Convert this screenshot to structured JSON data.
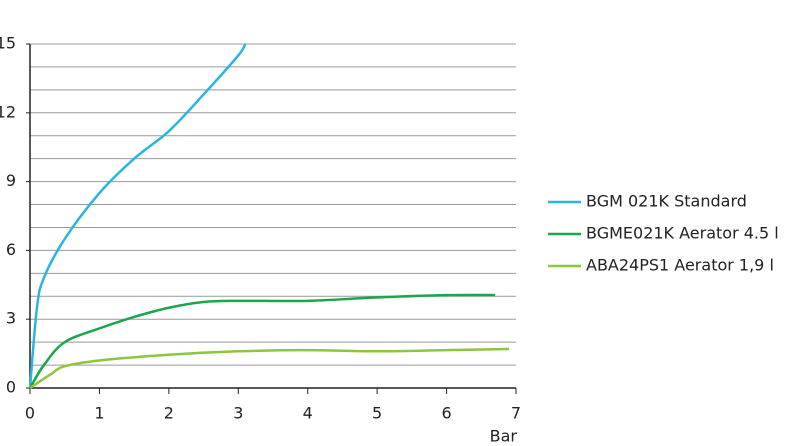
{
  "chart_data": {
    "type": "line",
    "xlabel": "Bar",
    "xlim": [
      0,
      7
    ],
    "xticks": [
      0,
      1,
      2,
      3,
      4,
      5,
      6,
      7
    ],
    "ylim": [
      0,
      15
    ],
    "yticks": [
      0,
      3,
      6,
      9,
      12,
      15
    ],
    "ygrid": [
      1,
      2,
      3,
      4,
      5,
      6,
      7,
      8,
      9,
      10,
      11,
      12,
      13,
      14,
      15
    ],
    "grid": true,
    "legend": "right",
    "series": [
      {
        "name": "BGM 021K Standard",
        "color": "#29b5e0",
        "x": [
          0,
          0.1,
          0.2,
          0.5,
          1,
          1.5,
          2,
          2.5,
          3,
          3.1
        ],
        "values": [
          0,
          3.5,
          4.8,
          6.5,
          8.5,
          10,
          11.2,
          12.8,
          14.5,
          15
        ]
      },
      {
        "name": "BGME021K Aerator 4.5 l",
        "color": "#1aa64a",
        "x": [
          0,
          0.2,
          0.5,
          1,
          1.5,
          2,
          2.5,
          3,
          4,
          5,
          6,
          6.7
        ],
        "values": [
          0,
          1,
          2,
          2.6,
          3.1,
          3.5,
          3.75,
          3.8,
          3.8,
          3.95,
          4.05,
          4.05
        ]
      },
      {
        "name": "ABA24PS1 Aerator 1,9 l",
        "color": "#8cc63f",
        "x": [
          0,
          0.3,
          0.5,
          1,
          2,
          3,
          4,
          5,
          6,
          6.9
        ],
        "values": [
          0,
          0.6,
          0.95,
          1.2,
          1.45,
          1.6,
          1.65,
          1.6,
          1.65,
          1.7
        ]
      }
    ]
  }
}
